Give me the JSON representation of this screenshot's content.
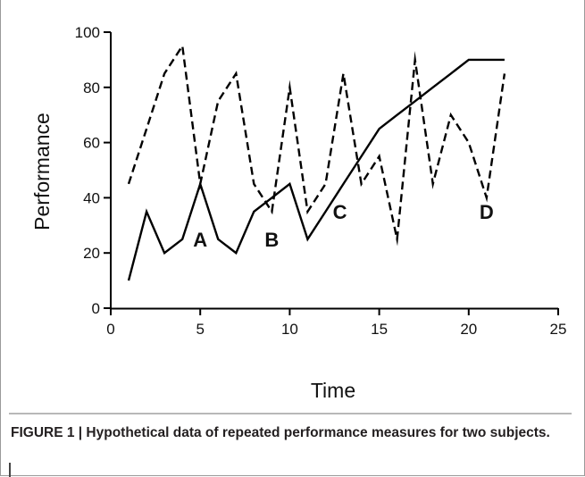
{
  "chart_data": {
    "type": "line",
    "title": "",
    "xlabel": "Time",
    "ylabel": "Performance",
    "xlim": [
      0,
      25
    ],
    "ylim": [
      0,
      100
    ],
    "x_ticks": [
      0,
      5,
      10,
      15,
      20,
      25
    ],
    "y_ticks": [
      0,
      20,
      40,
      60,
      80,
      100
    ],
    "grid": false,
    "legend": "none",
    "series": [
      {
        "style": "solid",
        "color": "#000000",
        "x": [
          1,
          2,
          3,
          4,
          5,
          6,
          7,
          8,
          9,
          10,
          11,
          12,
          13,
          14,
          15,
          16,
          17,
          18,
          19,
          20,
          21,
          22
        ],
        "y": [
          10,
          35,
          20,
          25,
          45,
          25,
          20,
          35,
          40,
          45,
          25,
          35,
          45,
          55,
          65,
          70,
          75,
          80,
          85,
          90,
          90,
          90
        ]
      },
      {
        "style": "dashed",
        "color": "#000000",
        "x": [
          1,
          2,
          3,
          4,
          5,
          6,
          7,
          8,
          9,
          10,
          11,
          12,
          13,
          14,
          15,
          16,
          17,
          18,
          19,
          20,
          21,
          22
        ],
        "y": [
          45,
          65,
          85,
          95,
          45,
          75,
          85,
          45,
          35,
          80,
          35,
          45,
          85,
          45,
          55,
          25,
          90,
          45,
          70,
          60,
          40,
          85
        ]
      }
    ],
    "annotations": [
      {
        "text": "A",
        "x": 5,
        "y": 25
      },
      {
        "text": "B",
        "x": 9,
        "y": 25
      },
      {
        "text": "C",
        "x": 12.8,
        "y": 35
      },
      {
        "text": "D",
        "x": 21,
        "y": 35
      }
    ]
  },
  "caption": "FIGURE 1 | Hypothetical data of repeated performance measures for two subjects."
}
